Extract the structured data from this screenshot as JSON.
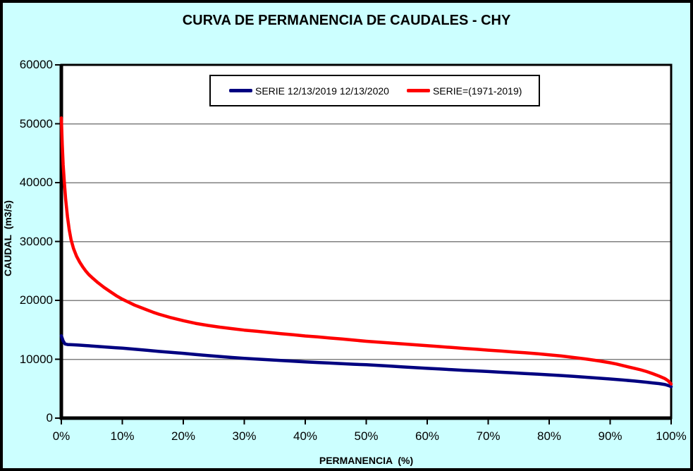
{
  "title": "CURVA DE PERMANENCIA DE CAUDALES - CHY",
  "colors": {
    "chart_background": "#CCFFFF",
    "plot_background": "#FFFFFF",
    "gridline": "#808080",
    "axis": "#000000",
    "text": "#000000",
    "legend_background": "#FFFFFF",
    "series_blue": "#000080",
    "series_red": "#FF0000"
  },
  "chart_data": {
    "type": "line",
    "title": "CURVA DE PERMANENCIA DE CAUDALES - CHY",
    "xlabel": "PERMANENCIA  (%)",
    "ylabel": "CAUDAL  (m3/s)",
    "xlim": [
      0,
      100
    ],
    "ylim": [
      0,
      60000
    ],
    "grid": "horizontal-only",
    "legend_position": "top-center-inside",
    "x_ticks": [
      {
        "label": "0%",
        "value": 0
      },
      {
        "label": "10%",
        "value": 10
      },
      {
        "label": "20%",
        "value": 20
      },
      {
        "label": "30%",
        "value": 30
      },
      {
        "label": "40%",
        "value": 40
      },
      {
        "label": "50%",
        "value": 50
      },
      {
        "label": "60%",
        "value": 60
      },
      {
        "label": "70%",
        "value": 70
      },
      {
        "label": "80%",
        "value": 80
      },
      {
        "label": "90%",
        "value": 90
      },
      {
        "label": "100%",
        "value": 100
      }
    ],
    "y_ticks": [
      {
        "label": "0",
        "value": 0
      },
      {
        "label": "10000",
        "value": 10000
      },
      {
        "label": "20000",
        "value": 20000
      },
      {
        "label": "30000",
        "value": 30000
      },
      {
        "label": "40000",
        "value": 40000
      },
      {
        "label": "50000",
        "value": 50000
      },
      {
        "label": "60000",
        "value": 60000
      }
    ],
    "series": [
      {
        "name": "SERIE 12/13/2019 12/13/2020",
        "color": "#000080",
        "points": [
          [
            0,
            14000
          ],
          [
            0.3,
            13100
          ],
          [
            0.6,
            12600
          ],
          [
            1,
            12500
          ],
          [
            2,
            12450
          ],
          [
            3,
            12400
          ],
          [
            4,
            12320
          ],
          [
            5,
            12250
          ],
          [
            6,
            12170
          ],
          [
            7,
            12100
          ],
          [
            8,
            12020
          ],
          [
            9,
            11950
          ],
          [
            10,
            11880
          ],
          [
            12,
            11700
          ],
          [
            14,
            11520
          ],
          [
            16,
            11330
          ],
          [
            18,
            11160
          ],
          [
            20,
            11000
          ],
          [
            22,
            10820
          ],
          [
            24,
            10640
          ],
          [
            26,
            10470
          ],
          [
            28,
            10300
          ],
          [
            30,
            10150
          ],
          [
            32,
            10020
          ],
          [
            34,
            9900
          ],
          [
            36,
            9780
          ],
          [
            38,
            9660
          ],
          [
            40,
            9550
          ],
          [
            42,
            9450
          ],
          [
            44,
            9350
          ],
          [
            46,
            9250
          ],
          [
            48,
            9150
          ],
          [
            50,
            9060
          ],
          [
            52,
            8950
          ],
          [
            54,
            8830
          ],
          [
            56,
            8700
          ],
          [
            58,
            8580
          ],
          [
            60,
            8460
          ],
          [
            62,
            8350
          ],
          [
            64,
            8230
          ],
          [
            66,
            8120
          ],
          [
            68,
            8020
          ],
          [
            70,
            7920
          ],
          [
            72,
            7800
          ],
          [
            74,
            7700
          ],
          [
            76,
            7580
          ],
          [
            78,
            7470
          ],
          [
            80,
            7350
          ],
          [
            82,
            7230
          ],
          [
            84,
            7100
          ],
          [
            86,
            6950
          ],
          [
            88,
            6800
          ],
          [
            90,
            6650
          ],
          [
            92,
            6480
          ],
          [
            94,
            6300
          ],
          [
            95,
            6200
          ],
          [
            96,
            6100
          ],
          [
            97,
            5980
          ],
          [
            98,
            5870
          ],
          [
            99,
            5700
          ],
          [
            99.5,
            5550
          ],
          [
            100,
            5350
          ]
        ]
      },
      {
        "name": "SERIE=(1971-2019)",
        "color": "#FF0000",
        "points": [
          [
            0,
            51000
          ],
          [
            0.15,
            46500
          ],
          [
            0.3,
            43000
          ],
          [
            0.5,
            40000
          ],
          [
            0.7,
            37200
          ],
          [
            1,
            34200
          ],
          [
            1.3,
            32000
          ],
          [
            1.6,
            30300
          ],
          [
            2,
            28800
          ],
          [
            2.5,
            27500
          ],
          [
            3,
            26500
          ],
          [
            3.5,
            25700
          ],
          [
            4,
            25000
          ],
          [
            4.5,
            24400
          ],
          [
            5,
            23900
          ],
          [
            6,
            23000
          ],
          [
            7,
            22200
          ],
          [
            8,
            21500
          ],
          [
            9,
            20800
          ],
          [
            10,
            20200
          ],
          [
            11,
            19700
          ],
          [
            12,
            19200
          ],
          [
            13,
            18800
          ],
          [
            14,
            18400
          ],
          [
            15,
            18000
          ],
          [
            16,
            17650
          ],
          [
            17,
            17350
          ],
          [
            18,
            17050
          ],
          [
            19,
            16800
          ],
          [
            20,
            16550
          ],
          [
            22,
            16100
          ],
          [
            24,
            15750
          ],
          [
            26,
            15450
          ],
          [
            28,
            15200
          ],
          [
            30,
            14950
          ],
          [
            32,
            14750
          ],
          [
            34,
            14550
          ],
          [
            36,
            14350
          ],
          [
            38,
            14150
          ],
          [
            40,
            13950
          ],
          [
            42,
            13800
          ],
          [
            44,
            13600
          ],
          [
            46,
            13450
          ],
          [
            48,
            13250
          ],
          [
            50,
            13050
          ],
          [
            52,
            12900
          ],
          [
            54,
            12750
          ],
          [
            56,
            12600
          ],
          [
            58,
            12450
          ],
          [
            60,
            12300
          ],
          [
            62,
            12150
          ],
          [
            64,
            12000
          ],
          [
            66,
            11850
          ],
          [
            68,
            11700
          ],
          [
            70,
            11550
          ],
          [
            72,
            11400
          ],
          [
            74,
            11250
          ],
          [
            76,
            11100
          ],
          [
            78,
            10950
          ],
          [
            80,
            10750
          ],
          [
            82,
            10550
          ],
          [
            84,
            10300
          ],
          [
            86,
            10050
          ],
          [
            88,
            9750
          ],
          [
            90,
            9400
          ],
          [
            91,
            9200
          ],
          [
            92,
            8950
          ],
          [
            93,
            8700
          ],
          [
            94,
            8450
          ],
          [
            95,
            8200
          ],
          [
            96,
            7900
          ],
          [
            97,
            7550
          ],
          [
            98,
            7150
          ],
          [
            99,
            6700
          ],
          [
            99.5,
            6350
          ],
          [
            100,
            5800
          ]
        ]
      }
    ]
  }
}
